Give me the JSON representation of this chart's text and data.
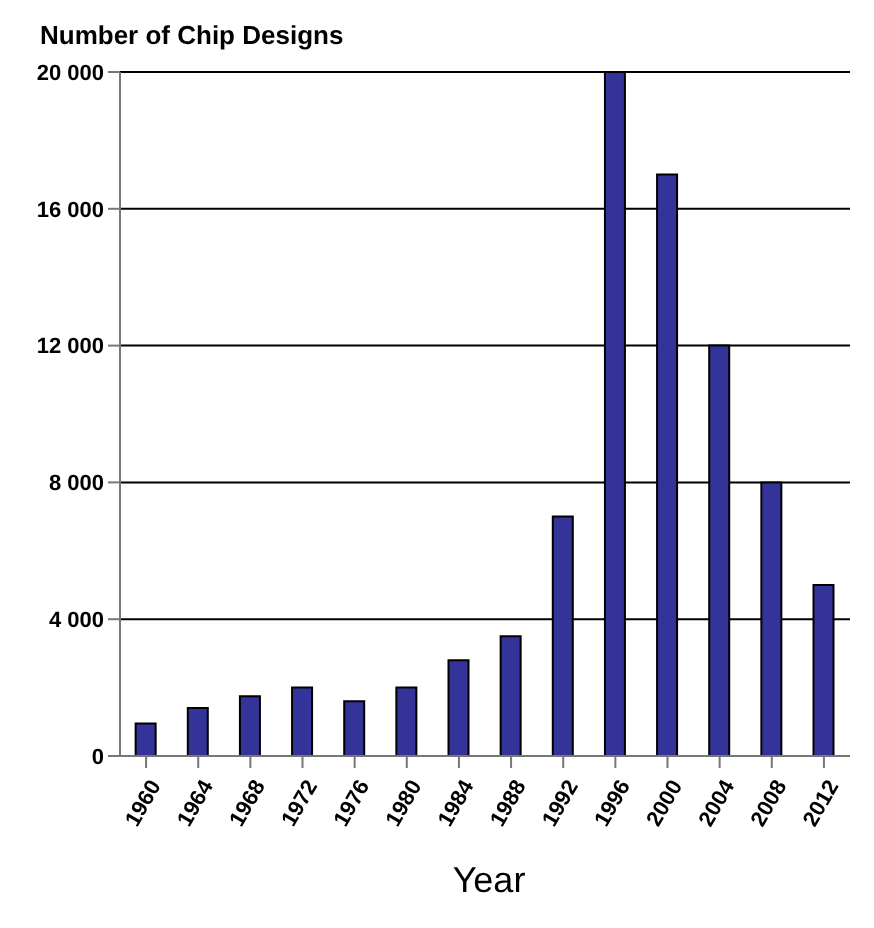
{
  "chart_data": {
    "type": "bar",
    "title": "Number of Chip Designs",
    "xlabel": "Year",
    "categories": [
      "1960",
      "1964",
      "1968",
      "1972",
      "1976",
      "1980",
      "1984",
      "1988",
      "1992",
      "1996",
      "2000",
      "2004",
      "2008",
      "2012"
    ],
    "values": [
      950,
      1400,
      1750,
      2000,
      1600,
      2000,
      2800,
      3500,
      7000,
      20000,
      17000,
      12000,
      8000,
      5000
    ],
    "color": "#333399",
    "ylim": [
      0,
      20000
    ],
    "yticks": [
      0,
      {
        "value": 4000,
        "label": "4 000"
      },
      {
        "value": 8000,
        "label": "8 000"
      },
      {
        "value": 12000,
        "label": "12 000"
      },
      {
        "value": 16000,
        "label": "16 000"
      },
      {
        "value": 20000,
        "label": "20 000"
      }
    ],
    "grid": "y",
    "legend": false
  }
}
